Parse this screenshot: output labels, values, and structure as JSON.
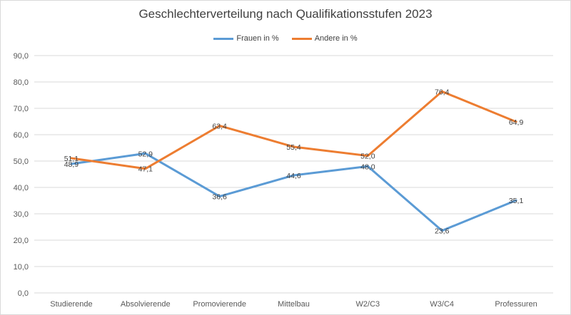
{
  "chart_data": {
    "type": "line",
    "title": "Geschlechterverteilung nach Qualifikationsstufen 2023",
    "categories": [
      "Studierende",
      "Absolvierende",
      "Promovierende",
      "Mittelbau",
      "W2/C3",
      "W3/C4",
      "Professuren"
    ],
    "series": [
      {
        "name": "Frauen in %",
        "color": "#5b9bd5",
        "values": [
          48.9,
          52.9,
          36.6,
          44.6,
          48.0,
          23.6,
          35.1
        ],
        "labels": [
          "48,9",
          "52,9",
          "36,6",
          "44,6",
          "48,0",
          "23,6",
          "35,1"
        ]
      },
      {
        "name": "Andere in %",
        "color": "#ed7d31",
        "values": [
          51.1,
          47.1,
          63.4,
          55.4,
          52.0,
          76.4,
          64.9
        ],
        "labels": [
          "51,1",
          "47,1",
          "63,4",
          "55,4",
          "52,0",
          "76,4",
          "64,9"
        ]
      }
    ],
    "ylim": [
      0,
      90
    ],
    "yticks": [
      "0,0",
      "10,0",
      "20,0",
      "30,0",
      "40,0",
      "50,0",
      "60,0",
      "70,0",
      "80,0",
      "90,0"
    ],
    "grid": true,
    "legend_position": "top",
    "xlabel": "",
    "ylabel": ""
  }
}
